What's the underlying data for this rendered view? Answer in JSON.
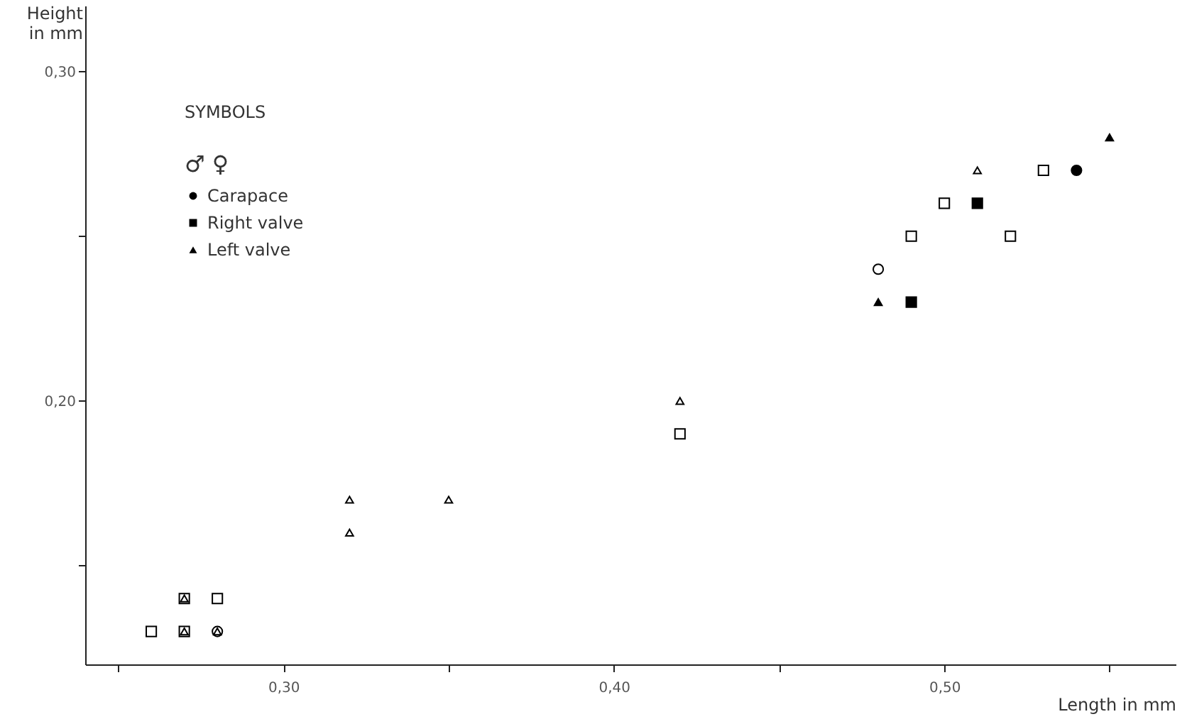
{
  "chart_data": {
    "type": "scatter",
    "xlabel": "Length in mm",
    "ylabel": "Height in mm",
    "legend_title": "SYMBOLS",
    "legend": "top left",
    "grid": false,
    "annotations": [
      "♂ ♀"
    ],
    "xlim": [
      0.24,
      0.57
    ],
    "xticks": [
      {
        "value": 0.25,
        "label": null
      },
      {
        "value": 0.3,
        "label": "0,30"
      },
      {
        "value": 0.35,
        "label": null
      },
      {
        "value": 0.4,
        "label": "0,40"
      },
      {
        "value": 0.45,
        "label": null
      },
      {
        "value": 0.5,
        "label": "0,50"
      },
      {
        "value": 0.55,
        "label": null
      }
    ],
    "ylim": [
      0.12,
      0.32
    ],
    "yticks": [
      {
        "value": 0.15,
        "label": null
      },
      {
        "value": 0.2,
        "label": "0,20"
      },
      {
        "value": 0.25,
        "label": null
      },
      {
        "value": 0.3,
        "label": "0,30"
      }
    ],
    "series": [
      {
        "name": "Carapace",
        "color": "#000000",
        "marker": "circle",
        "x": [
          0.54
        ],
        "values": [
          0.27
        ]
      },
      {
        "color": "#ffffff",
        "marker": "circle",
        "x": [
          0.28,
          0.48
        ],
        "values": [
          0.13,
          0.24
        ]
      },
      {
        "name": "Right valve",
        "color": "#000000",
        "marker": "square",
        "x": [
          0.49,
          0.51
        ],
        "values": [
          0.23,
          0.26
        ]
      },
      {
        "color": "#ffffff",
        "marker": "square",
        "x": [
          0.26,
          0.27,
          0.27,
          0.28,
          0.42,
          0.49,
          0.5,
          0.52,
          0.53
        ],
        "values": [
          0.13,
          0.13,
          0.14,
          0.14,
          0.19,
          0.25,
          0.26,
          0.25,
          0.27
        ]
      },
      {
        "name": "Left valve",
        "color": "#000000",
        "marker": "triangle",
        "x": [
          0.48,
          0.55
        ],
        "values": [
          0.23,
          0.28
        ]
      },
      {
        "color": "#ffffff",
        "marker": "triangle",
        "x": [
          0.27,
          0.27,
          0.28,
          0.32,
          0.32,
          0.35,
          0.42,
          0.51
        ],
        "values": [
          0.13,
          0.14,
          0.13,
          0.16,
          0.17,
          0.17,
          0.2,
          0.27
        ]
      }
    ]
  }
}
